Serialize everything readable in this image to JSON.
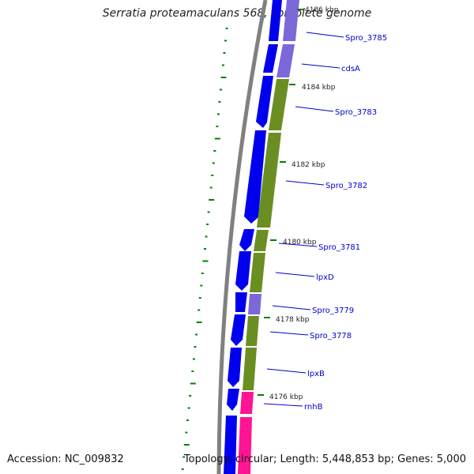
{
  "header": {
    "title": "Serratia proteamaculans 568, complete genome"
  },
  "footer": {
    "accession": "Accession: NC_009832",
    "summary": "Topology: circular; Length: 5,448,853 bp; Genes: 5,000"
  },
  "colors": {
    "backbone": "#808080",
    "gene_arrow": "#0000ee",
    "cds_light": "#7b68d9",
    "cds_green": "#6b8e23",
    "rna_pink": "#ff1493",
    "tick_green": "#008000",
    "label_blue": "#0000cc"
  },
  "ticks": [
    {
      "label": "4186 kbp"
    },
    {
      "label": "4184 kbp"
    },
    {
      "label": "4182 kbp"
    },
    {
      "label": "4180 kbp"
    },
    {
      "label": "4178 kbp"
    },
    {
      "label": "4176 kbp"
    }
  ],
  "genes": [
    {
      "label": "Spro_3785"
    },
    {
      "label": "cdsA"
    },
    {
      "label": "Spro_3783"
    },
    {
      "label": "Spro_3782"
    },
    {
      "label": "Spro_3781"
    },
    {
      "label": "lpxD"
    },
    {
      "label": "Spro_3779"
    },
    {
      "label": "Spro_3778"
    },
    {
      "label": "lpxB"
    },
    {
      "label": "rnhB"
    }
  ]
}
